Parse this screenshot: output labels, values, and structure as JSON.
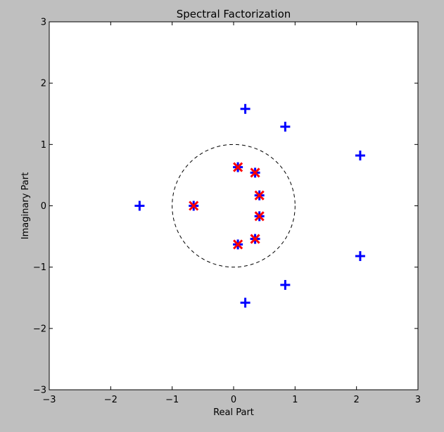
{
  "chart_data": {
    "type": "scatter",
    "title": "Spectral Factorization",
    "xlabel": "Real Part",
    "ylabel": "Imaginary Part",
    "xlim": [
      -3,
      3
    ],
    "ylim": [
      -3,
      3
    ],
    "xticks": [
      "−3",
      "−2",
      "−1",
      "0",
      "1",
      "2",
      "3"
    ],
    "yticks": [
      "−3",
      "−2",
      "−1",
      "0",
      "1",
      "2",
      "3"
    ],
    "xtick_values": [
      -3,
      -2,
      -1,
      0,
      1,
      2,
      3
    ],
    "ytick_values": [
      -3,
      -2,
      -1,
      0,
      1,
      2,
      3
    ],
    "grid": false,
    "unit_circle": {
      "center": [
        0,
        0
      ],
      "radius": 1,
      "style": "dashed",
      "color": "#000000"
    },
    "series": [
      {
        "marker": "plus",
        "color": "#0000ff",
        "points": [
          [
            0.19,
            1.58
          ],
          [
            0.84,
            1.29
          ],
          [
            2.06,
            0.82
          ],
          [
            -1.53,
            0.0
          ],
          [
            2.06,
            -0.82
          ],
          [
            0.84,
            -1.29
          ],
          [
            0.19,
            -1.58
          ],
          [
            0.07,
            0.63
          ],
          [
            0.35,
            0.54
          ],
          [
            0.42,
            0.17
          ],
          [
            -0.65,
            0.0
          ],
          [
            0.42,
            -0.17
          ],
          [
            0.35,
            -0.54
          ],
          [
            0.07,
            -0.63
          ]
        ]
      },
      {
        "marker": "x",
        "color": "#ff0000",
        "points": [
          [
            0.07,
            0.63
          ],
          [
            0.35,
            0.54
          ],
          [
            0.42,
            0.17
          ],
          [
            -0.65,
            0.0
          ],
          [
            0.42,
            -0.17
          ],
          [
            0.35,
            -0.54
          ],
          [
            0.07,
            -0.63
          ]
        ]
      }
    ]
  }
}
